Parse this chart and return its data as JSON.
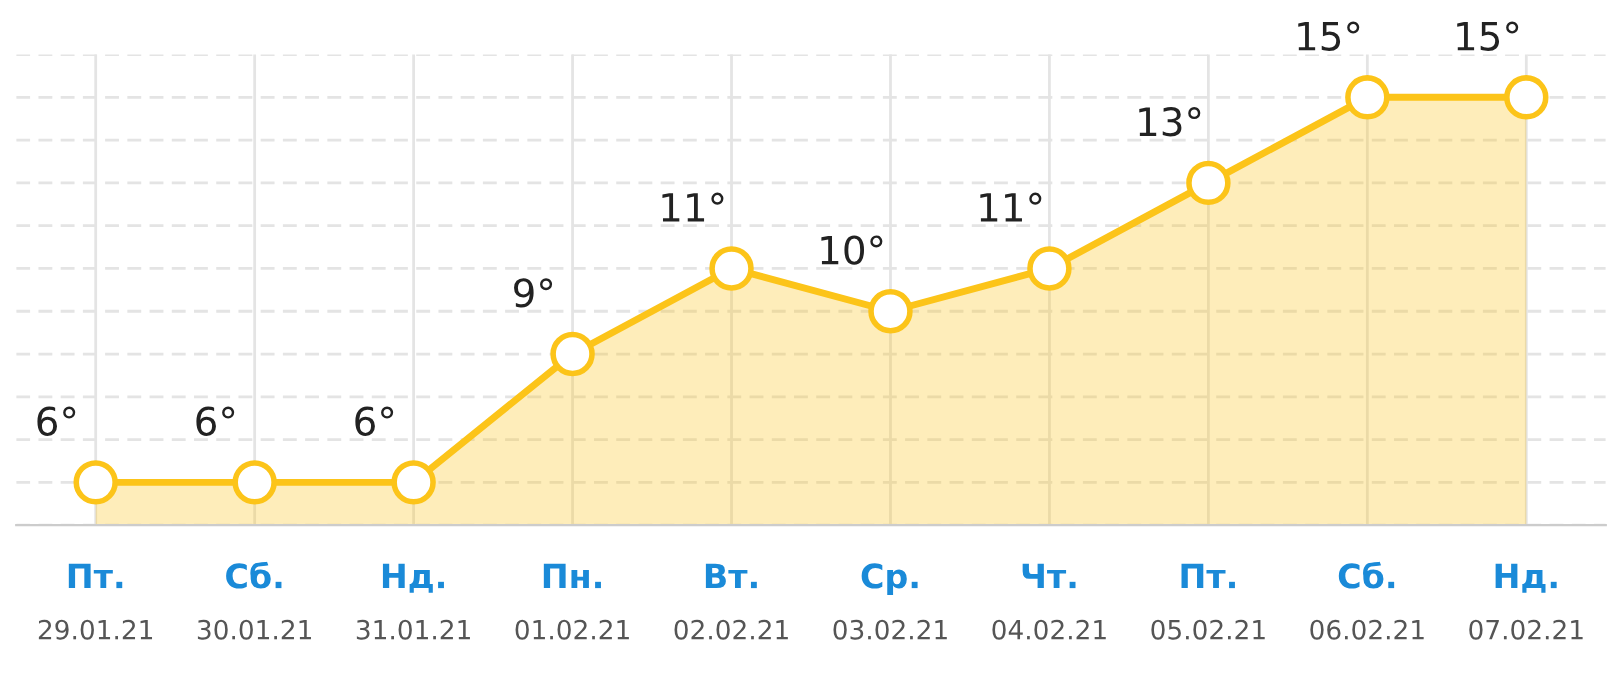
{
  "chart_data": {
    "type": "area",
    "categories": [
      "Пт.\n29.01.21",
      "Сб.\n30.01.21",
      "Нд.\n31.01.21",
      "Пн.\n01.02.21",
      "Вт.\n02.02.21",
      "Ср.\n03.02.21",
      "Чт.\n04.02.21",
      "Пт.\n05.02.21",
      "Сб.\n06.02.21",
      "Нд.\n07.02.21"
    ],
    "series": [
      {
        "color": "#fcc419",
        "values": [
          6,
          6,
          6,
          9,
          11,
          10,
          11,
          13,
          15,
          15
        ],
        "value_labels": [
          "6°",
          "6°",
          "6°",
          "9°",
          "11°",
          "10°",
          "11°",
          "13°",
          "15°",
          "15°"
        ]
      }
    ],
    "ylim": [
      5,
      16
    ],
    "yticks": [
      {
        "value": 5,
        "label": null
      },
      {
        "value": 6,
        "label": null
      },
      {
        "value": 7,
        "label": null
      },
      {
        "value": 8,
        "label": null
      },
      {
        "value": 9,
        "label": null
      },
      {
        "value": 10,
        "label": null
      },
      {
        "value": 11,
        "label": null
      },
      {
        "value": 12,
        "label": null
      },
      {
        "value": 13,
        "label": null
      },
      {
        "value": 14,
        "label": null
      },
      {
        "value": 15,
        "label": null
      },
      {
        "value": 16,
        "label": null
      }
    ],
    "grid": true,
    "marker": "circle",
    "tick_labels": "x",
    "legend": false
  }
}
